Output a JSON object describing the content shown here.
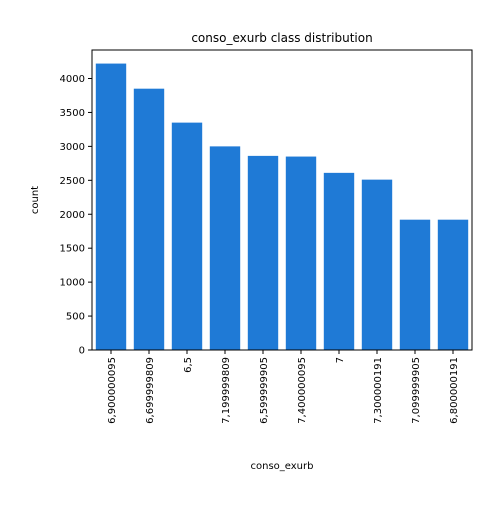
{
  "colors": {
    "bar": "#1f7ad6",
    "axis": "#000000",
    "background": "#ffffff"
  },
  "chart_data": {
    "type": "bar",
    "title": "conso_exurb class distribution",
    "xlabel": "conso_exurb",
    "ylabel": "count",
    "categories": [
      "6,900000095",
      "6,699999809",
      "6,5",
      "7,199999809",
      "6,599999905",
      "7,400000095",
      "7",
      "7,300000191",
      "7,099999905",
      "6,800000191"
    ],
    "values": [
      4220,
      3850,
      3350,
      3000,
      2860,
      2850,
      2610,
      2510,
      1920,
      1920
    ],
    "ylim": [
      0,
      4420
    ],
    "yticks": [
      0,
      500,
      1000,
      1500,
      2000,
      2500,
      3000,
      3500,
      4000
    ],
    "grid": false,
    "legend": false
  }
}
